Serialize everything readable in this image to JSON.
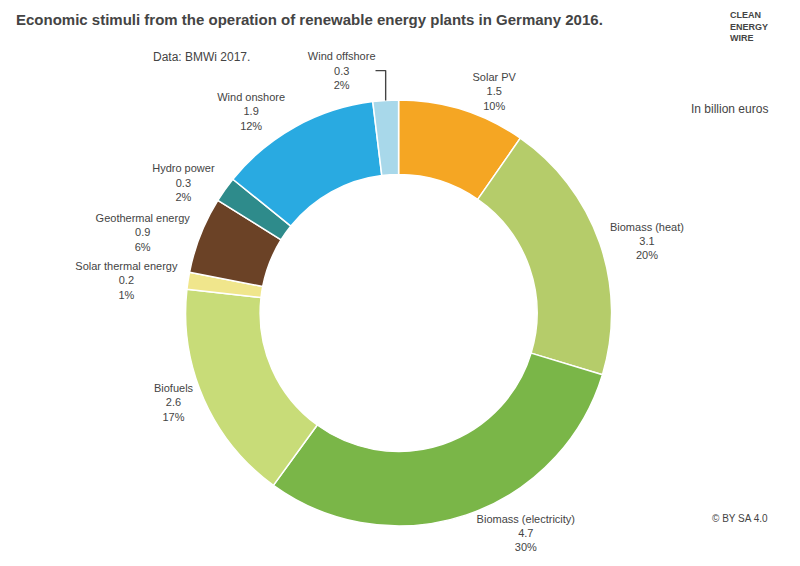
{
  "chart_data": {
    "type": "pie",
    "title": "Economic stimuli from the operation of renewable energy plants in Germany 2016.",
    "subtitle": "Data: BMWi 2017.",
    "note": "In billion euros",
    "annotations": [
      "© BY SA 4.0"
    ],
    "logo": [
      "CLEAN",
      "ENERGY",
      "WIRE"
    ],
    "categories": [
      "Solar PV",
      "Biomass (heat)",
      "Biomass (electricity)",
      "Biofuels",
      "Solar thermal energy",
      "Geothermal energy",
      "Hydro power",
      "Wind onshore",
      "Wind offshore"
    ],
    "values": [
      1.5,
      3.1,
      4.7,
      2.6,
      0.2,
      0.9,
      0.3,
      1.9,
      0.3
    ],
    "share_labels": [
      "10%",
      "20%",
      "30%",
      "17%",
      "1%",
      "6%",
      "2%",
      "12%",
      "2%"
    ],
    "colors": [
      "#f5a623",
      "#b5cc6a",
      "#7ab648",
      "#c8dc78",
      "#f0e68c",
      "#6b4226",
      "#2e8b8b",
      "#29aae1",
      "#a8d8ea"
    ],
    "data_labels": true
  }
}
